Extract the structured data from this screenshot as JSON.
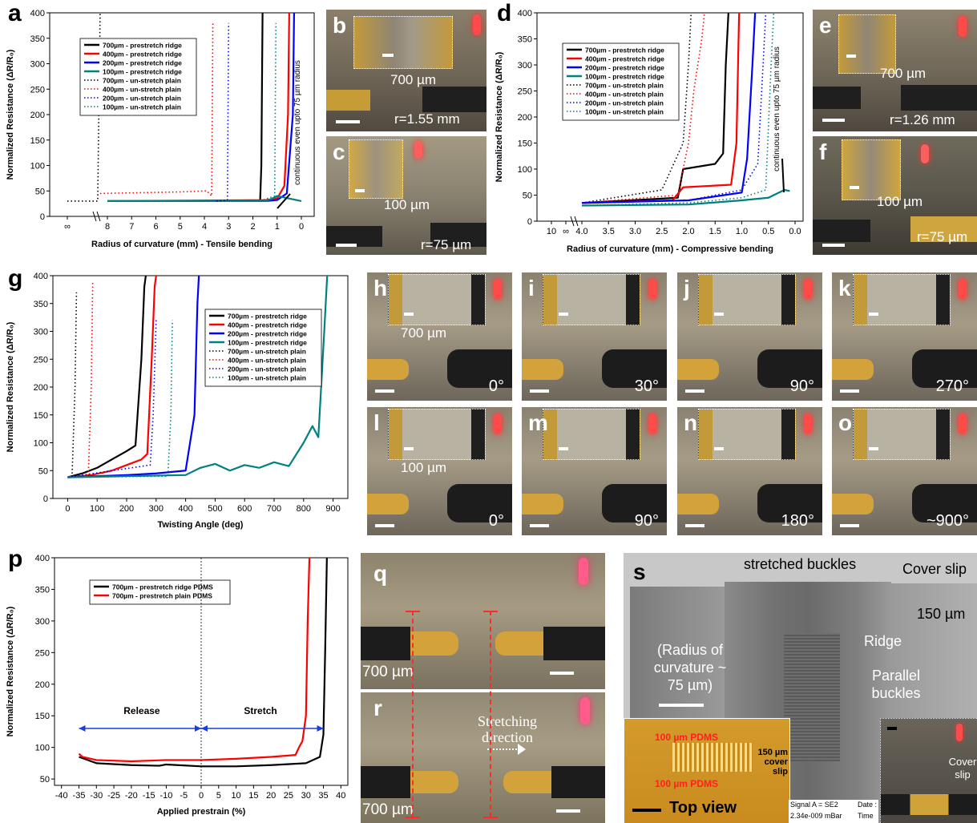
{
  "panels": {
    "a": "a",
    "b": "b",
    "c": "c",
    "d": "d",
    "e": "e",
    "f": "f",
    "g": "g",
    "h": "h",
    "i": "i",
    "j": "j",
    "k": "k",
    "l": "l",
    "m": "m",
    "n": "n",
    "o": "o",
    "p": "p",
    "q": "q",
    "r": "r",
    "s": "s"
  },
  "ylabel": "Normalized Resistance (ΔR/R₀)",
  "chart_data": [
    {
      "id": "a",
      "type": "line",
      "xlabel": "Radius of curvature (mm) - Tensile bending",
      "ylabel": "Normalized Resistance (ΔR/R0)",
      "x_ticks": [
        "∞",
        "8",
        "7",
        "6",
        "5",
        "4",
        "3",
        "2",
        "1",
        "0"
      ],
      "ylim": [
        0,
        400
      ],
      "y_ticks": [
        "0",
        "50",
        "100",
        "150",
        "200",
        "250",
        "300",
        "350",
        "400"
      ],
      "annotation": "continuous even upto 75 µm radius",
      "series": [
        {
          "name": "700µm - prestretch ridge",
          "color": "#000000",
          "style": "solid",
          "x": [
            8.0,
            1.9,
            1.7,
            1.65,
            1.6
          ],
          "y": [
            30,
            30,
            31,
            100,
            400
          ]
        },
        {
          "name": "400µm - prestretch ridge",
          "color": "#ff0000",
          "style": "solid",
          "x": [
            8.0,
            1.5,
            1.0,
            0.7,
            0.55,
            0.5
          ],
          "y": [
            30,
            32,
            35,
            60,
            200,
            400
          ]
        },
        {
          "name": "200µm - prestretch ridge",
          "color": "#0000ff",
          "style": "solid",
          "x": [
            8.0,
            1.5,
            1.0,
            0.6,
            0.35,
            0.3
          ],
          "y": [
            30,
            30,
            32,
            45,
            200,
            400
          ]
        },
        {
          "name": "100µm - prestretch ridge",
          "color": "#008080",
          "style": "solid",
          "x": [
            8.0,
            1.5,
            1.2,
            1.0,
            0.0
          ],
          "y": [
            30,
            30,
            35,
            40,
            30
          ]
        },
        {
          "name": "700µm - un-stretch plain",
          "color": "#000000",
          "style": "dotted",
          "x": [
            10,
            8.4,
            8.3
          ],
          "y": [
            30,
            30,
            400
          ]
        },
        {
          "name": "400µm - un-stretch plain",
          "color": "#ff0000",
          "style": "dotted",
          "x": [
            8.3,
            5.0,
            3.9,
            3.7,
            3.65
          ],
          "y": [
            45,
            48,
            50,
            40,
            380
          ]
        },
        {
          "name": "200µm - un-stretch plain",
          "color": "#0000ff",
          "style": "dotted",
          "x": [
            3.5,
            3.05,
            3.0
          ],
          "y": [
            30,
            32,
            380
          ]
        },
        {
          "name": "100µm - un-stretch plain",
          "color": "#008080",
          "style": "dotted",
          "x": [
            2.0,
            1.6,
            1.1,
            1.05
          ],
          "y": [
            30,
            32,
            40,
            380
          ]
        }
      ]
    },
    {
      "id": "d",
      "type": "line",
      "xlabel": "Radius of curvature (mm) - Compressive bending",
      "ylabel": "Normalized Resistance (ΔR/R0)",
      "x_ticks": [
        "10",
        "∞",
        "4.0",
        "3.5",
        "3.0",
        "2.5",
        "2.0",
        "1.5",
        "1.0",
        "0.5",
        "0.0"
      ],
      "ylim": [
        0,
        400
      ],
      "y_ticks": [
        "0",
        "50",
        "100",
        "150",
        "200",
        "250",
        "300",
        "350",
        "400"
      ],
      "annotation": "continuous even upto 75 µm radius",
      "series": [
        {
          "name": "700µm - prestretch ridge",
          "color": "#000000",
          "style": "solid",
          "x": [
            4.0,
            2.2,
            2.1,
            1.5,
            1.35,
            1.3,
            1.25
          ],
          "y": [
            35,
            45,
            100,
            110,
            130,
            300,
            400
          ]
        },
        {
          "name": "400µm - prestretch ridge",
          "color": "#ff0000",
          "style": "solid",
          "x": [
            4.0,
            2.3,
            2.1,
            1.2,
            1.1,
            1.05
          ],
          "y": [
            35,
            40,
            65,
            70,
            150,
            400
          ]
        },
        {
          "name": "200µm - prestretch ridge",
          "color": "#0000ff",
          "style": "solid",
          "x": [
            4.0,
            2.0,
            1.0,
            0.9,
            0.8,
            0.75
          ],
          "y": [
            35,
            40,
            55,
            120,
            300,
            400
          ]
        },
        {
          "name": "100µm - prestretch ridge",
          "color": "#008080",
          "style": "solid",
          "x": [
            4.0,
            2.0,
            1.0,
            0.5,
            0.2,
            0.1
          ],
          "y": [
            30,
            32,
            40,
            45,
            60,
            58
          ]
        },
        {
          "name": "700µm - un-stretch plain",
          "color": "#000000",
          "style": "dotted",
          "x": [
            4.0,
            2.5,
            2.1,
            2.0,
            1.95
          ],
          "y": [
            35,
            60,
            150,
            300,
            400
          ]
        },
        {
          "name": "400µm - un-stretch plain",
          "color": "#ff0000",
          "style": "dotted",
          "x": [
            4.0,
            2.2,
            2.0,
            1.9,
            1.75,
            1.7
          ],
          "y": [
            35,
            50,
            150,
            250,
            350,
            400
          ]
        },
        {
          "name": "200µm - un-stretch plain",
          "color": "#0000ff",
          "style": "dotted",
          "x": [
            4.0,
            2.0,
            1.0,
            0.7,
            0.6,
            0.55
          ],
          "y": [
            35,
            40,
            60,
            110,
            300,
            400
          ]
        },
        {
          "name": "100µm - un-stretch plain",
          "color": "#008080",
          "style": "dotted",
          "x": [
            4.0,
            2.0,
            1.0,
            0.55,
            0.45,
            0.4
          ],
          "y": [
            30,
            35,
            45,
            60,
            300,
            400
          ]
        }
      ]
    },
    {
      "id": "g",
      "type": "line",
      "xlabel": "Twisting Angle (deg)",
      "ylabel": "Normalized Resistance (ΔR/R0)",
      "xlim": [
        -50,
        950
      ],
      "x_ticks": [
        "0",
        "100",
        "200",
        "300",
        "400",
        "500",
        "600",
        "700",
        "800",
        "900"
      ],
      "ylim": [
        0,
        400
      ],
      "y_ticks": [
        "0",
        "50",
        "100",
        "150",
        "200",
        "250",
        "300",
        "350",
        "400"
      ],
      "series": [
        {
          "name": "700µm - prestretch ridge",
          "color": "#000000",
          "style": "solid",
          "x": [
            0,
            50,
            100,
            150,
            200,
            230,
            250,
            260,
            265
          ],
          "y": [
            38,
            45,
            55,
            70,
            85,
            95,
            250,
            380,
            400
          ]
        },
        {
          "name": "400µm - prestretch ridge",
          "color": "#ff0000",
          "style": "solid",
          "x": [
            0,
            80,
            150,
            200,
            250,
            270,
            285,
            295,
            300
          ],
          "y": [
            38,
            42,
            50,
            60,
            70,
            80,
            250,
            380,
            400
          ]
        },
        {
          "name": "200µm - prestretch ridge",
          "color": "#0000ff",
          "style": "solid",
          "x": [
            0,
            100,
            200,
            300,
            400,
            430,
            440,
            445
          ],
          "y": [
            38,
            40,
            42,
            45,
            50,
            150,
            350,
            400
          ]
        },
        {
          "name": "100µm - prestretch ridge",
          "color": "#008080",
          "style": "solid",
          "x": [
            0,
            200,
            400,
            450,
            500,
            550,
            600,
            650,
            700,
            750,
            800,
            830,
            850,
            870,
            880
          ],
          "y": [
            38,
            40,
            42,
            55,
            62,
            50,
            60,
            55,
            65,
            58,
            100,
            130,
            110,
            300,
            400
          ]
        },
        {
          "name": "700µm - un-stretch plain",
          "color": "#000000",
          "style": "dotted",
          "x": [
            0,
            15,
            25,
            30
          ],
          "y": [
            38,
            40,
            200,
            370
          ]
        },
        {
          "name": "400µm - un-stretch plain",
          "color": "#ff0000",
          "style": "dotted",
          "x": [
            0,
            70,
            80,
            85
          ],
          "y": [
            38,
            40,
            200,
            390
          ]
        },
        {
          "name": "200µm - un-stretch plain",
          "color": "#0000ff",
          "style": "dotted",
          "x": [
            0,
            280,
            290,
            300
          ],
          "y": [
            38,
            60,
            150,
            320
          ]
        },
        {
          "name": "100µm - un-stretch plain",
          "color": "#008080",
          "style": "dotted",
          "x": [
            0,
            340,
            350,
            355
          ],
          "y": [
            38,
            40,
            150,
            320
          ]
        }
      ]
    },
    {
      "id": "p",
      "type": "line",
      "xlabel": "Applied prestrain (%)",
      "ylabel": "Normalized Resistance (ΔR/R0)",
      "xlim": [
        -42,
        42
      ],
      "x_ticks": [
        "-40",
        "-35",
        "-30",
        "-25",
        "-20",
        "-15",
        "-10",
        "-5",
        "0",
        "5",
        "10",
        "15",
        "20",
        "25",
        "30",
        "35",
        "40"
      ],
      "ylim": [
        40,
        400
      ],
      "y_ticks": [
        "50",
        "100",
        "150",
        "200",
        "250",
        "300",
        "350",
        "400"
      ],
      "annotations": [
        "Release",
        "Stretch"
      ],
      "series": [
        {
          "name": "700µm - prestretch ridge PDMS",
          "color": "#000000",
          "style": "solid",
          "x": [
            -35,
            -30,
            -20,
            -12,
            -10,
            0,
            10,
            20,
            30,
            34,
            35,
            35.5,
            36
          ],
          "y": [
            85,
            75,
            72,
            71,
            73,
            70,
            70,
            72,
            75,
            85,
            120,
            250,
            400
          ]
        },
        {
          "name": "700µm - prestretch plain PDMS",
          "color": "#ff0000",
          "style": "solid",
          "x": [
            -35,
            -34,
            -30,
            -20,
            -10,
            0,
            10,
            20,
            27,
            28,
            29,
            30,
            30.5,
            31
          ],
          "y": [
            90,
            85,
            80,
            78,
            80,
            80,
            82,
            85,
            88,
            100,
            110,
            150,
            300,
            400
          ]
        }
      ]
    }
  ],
  "photos": {
    "b": {
      "size": "700 µm",
      "r": "r=1.55 mm"
    },
    "c": {
      "size": "100 µm",
      "r": "r=75 µm"
    },
    "e": {
      "size": "700 µm",
      "r": "r=1.26 mm"
    },
    "f": {
      "size": "100 µm",
      "r": "r=75 µm"
    },
    "h": {
      "size": "700 µm",
      "angle": "0°"
    },
    "i": {
      "angle": "30°"
    },
    "j": {
      "angle": "90°"
    },
    "k": {
      "angle": "270°"
    },
    "l": {
      "size": "100 µm",
      "angle": "0°"
    },
    "m": {
      "angle": "90°"
    },
    "n": {
      "angle": "180°"
    },
    "o": {
      "angle": "~900°"
    },
    "q": {
      "size": "700 µm"
    },
    "r": {
      "size": "700 µm",
      "note": "Stretching direction"
    },
    "s": {
      "stretched": "stretched buckles",
      "cover": "Cover slip",
      "thickness": "150 µm",
      "radius": "(Radius of curvature ~ 75 µm)",
      "ridge": "Ridge",
      "parallel": "Parallel buckles",
      "inset_top": "100 µm PDMS",
      "inset_bottom": "100 µm PDMS",
      "inset_cover": "150 µm cover slip",
      "top_view": "Top view",
      "signal": "Signal A = SE2",
      "pressure": "2.34e-009 mBar",
      "date": "Date :",
      "time": "Time",
      "cover_small": "Cover slip"
    }
  }
}
